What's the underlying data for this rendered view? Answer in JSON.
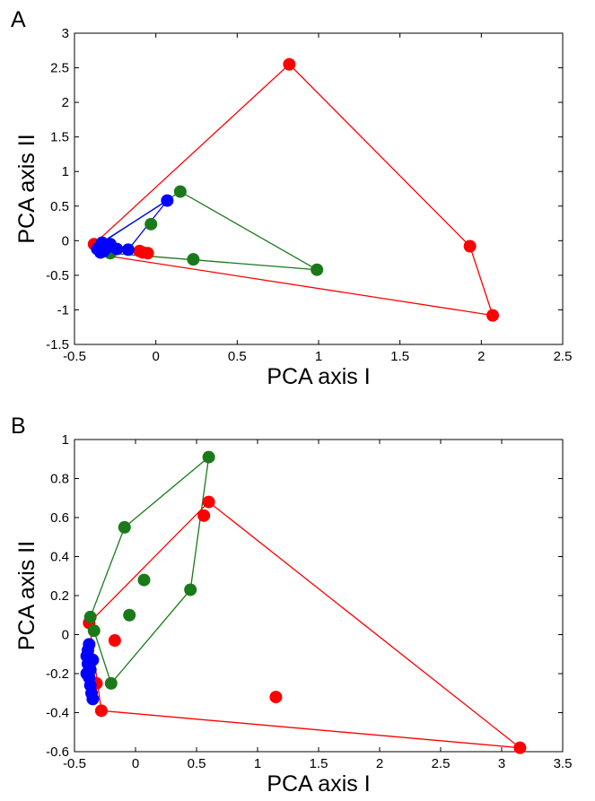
{
  "chart_data": [
    {
      "type": "scatter",
      "panel_label": "A",
      "xlabel": "PCA axis I",
      "ylabel": "PCA axis II",
      "xlim": [
        -0.5,
        2.5
      ],
      "ylim": [
        -1.5,
        3
      ],
      "xticks": [
        -0.5,
        0,
        0.5,
        1,
        1.5,
        2,
        2.5
      ],
      "xtick_labels": [
        "-0.5",
        "0",
        "0.5",
        "1",
        "1.5",
        "2",
        "2.5"
      ],
      "yticks": [
        -1.5,
        -1,
        -0.5,
        0,
        0.5,
        1,
        1.5,
        2,
        2.5,
        3
      ],
      "ytick_labels": [
        "-1.5",
        "-1",
        "-0.5",
        "0",
        "0.5",
        "1",
        "1.5",
        "2",
        "2.5",
        "3"
      ],
      "grid": false,
      "series": [
        {
          "color": "#ff0000",
          "points": [
            [
              0.82,
              2.55
            ],
            [
              1.93,
              -0.08
            ],
            [
              2.07,
              -1.08
            ],
            [
              -0.35,
              -0.08
            ],
            [
              -0.38,
              -0.05
            ],
            [
              -0.08,
              -0.17
            ],
            [
              -0.05,
              -0.18
            ],
            [
              -0.1,
              -0.15
            ]
          ],
          "hull": [
            [
              -0.38,
              -0.05
            ],
            [
              0.82,
              2.55
            ],
            [
              1.93,
              -0.08
            ],
            [
              2.07,
              -1.08
            ],
            [
              -0.35,
              -0.2
            ],
            [
              -0.38,
              -0.05
            ]
          ]
        },
        {
          "color": "#1a7a1a",
          "points": [
            [
              0.15,
              0.71
            ],
            [
              0.99,
              -0.42
            ],
            [
              0.23,
              -0.27
            ],
            [
              -0.03,
              0.24
            ],
            [
              -0.28,
              -0.18
            ],
            [
              -0.33,
              -0.1
            ]
          ],
          "hull": [
            [
              -0.33,
              -0.03
            ],
            [
              0.15,
              0.71
            ],
            [
              0.99,
              -0.42
            ],
            [
              -0.28,
              -0.18
            ],
            [
              -0.33,
              -0.03
            ]
          ]
        },
        {
          "color": "#0000ff",
          "points": [
            [
              0.07,
              0.58
            ],
            [
              -0.17,
              -0.13
            ],
            [
              -0.24,
              -0.12
            ],
            [
              -0.28,
              -0.05
            ],
            [
              -0.3,
              -0.1
            ],
            [
              -0.32,
              -0.15
            ],
            [
              -0.34,
              -0.17
            ],
            [
              -0.33,
              -0.03
            ],
            [
              -0.36,
              -0.12
            ]
          ],
          "hull": [
            [
              -0.36,
              -0.12
            ],
            [
              -0.33,
              -0.02
            ],
            [
              0.07,
              0.58
            ],
            [
              -0.17,
              -0.13
            ],
            [
              -0.34,
              -0.18
            ],
            [
              -0.36,
              -0.12
            ]
          ]
        }
      ]
    },
    {
      "type": "scatter",
      "panel_label": "B",
      "xlabel": "PCA axis I",
      "ylabel": "PCA axis II",
      "xlim": [
        -0.5,
        3.5
      ],
      "ylim": [
        -0.6,
        1
      ],
      "xticks": [
        -0.5,
        0,
        0.5,
        1,
        1.5,
        2,
        2.5,
        3,
        3.5
      ],
      "xtick_labels": [
        "-0.5",
        "0",
        "0.5",
        "1",
        "1.5",
        "2",
        "2.5",
        "3",
        "3.5"
      ],
      "yticks": [
        -0.6,
        -0.4,
        -0.2,
        0,
        0.2,
        0.4,
        0.6,
        0.8,
        1
      ],
      "ytick_labels": [
        "-0.6",
        "-0.4",
        "-0.2",
        "0",
        "0.2",
        "0.4",
        "0.6",
        "0.8",
        "1"
      ],
      "grid": false,
      "series": [
        {
          "color": "#ff0000",
          "points": [
            [
              0.6,
              0.68
            ],
            [
              0.56,
              0.61
            ],
            [
              3.15,
              -0.58
            ],
            [
              1.15,
              -0.32
            ],
            [
              -0.28,
              -0.39
            ],
            [
              -0.17,
              -0.03
            ],
            [
              -0.38,
              0.06
            ],
            [
              -0.32,
              -0.25
            ]
          ],
          "hull": [
            [
              -0.38,
              0.06
            ],
            [
              0.6,
              0.68
            ],
            [
              3.15,
              -0.58
            ],
            [
              -0.28,
              -0.39
            ],
            [
              -0.38,
              0.06
            ]
          ]
        },
        {
          "color": "#1a7a1a",
          "points": [
            [
              0.6,
              0.91
            ],
            [
              -0.09,
              0.55
            ],
            [
              0.07,
              0.28
            ],
            [
              0.45,
              0.23
            ],
            [
              -0.05,
              0.1
            ],
            [
              -0.37,
              0.09
            ],
            [
              -0.34,
              0.02
            ],
            [
              -0.2,
              -0.25
            ]
          ],
          "hull": [
            [
              -0.37,
              0.09
            ],
            [
              -0.09,
              0.55
            ],
            [
              0.6,
              0.91
            ],
            [
              0.45,
              0.23
            ],
            [
              -0.2,
              -0.25
            ],
            [
              -0.34,
              0.02
            ],
            [
              -0.37,
              0.09
            ]
          ]
        },
        {
          "color": "#0000ff",
          "points": [
            [
              -0.38,
              -0.05
            ],
            [
              -0.39,
              -0.08
            ],
            [
              -0.4,
              -0.11
            ],
            [
              -0.39,
              -0.15
            ],
            [
              -0.37,
              -0.18
            ],
            [
              -0.35,
              -0.13
            ],
            [
              -0.38,
              -0.22
            ],
            [
              -0.37,
              -0.26
            ],
            [
              -0.36,
              -0.3
            ],
            [
              -0.35,
              -0.33
            ],
            [
              -0.4,
              -0.2
            ]
          ],
          "hull": []
        }
      ]
    }
  ]
}
